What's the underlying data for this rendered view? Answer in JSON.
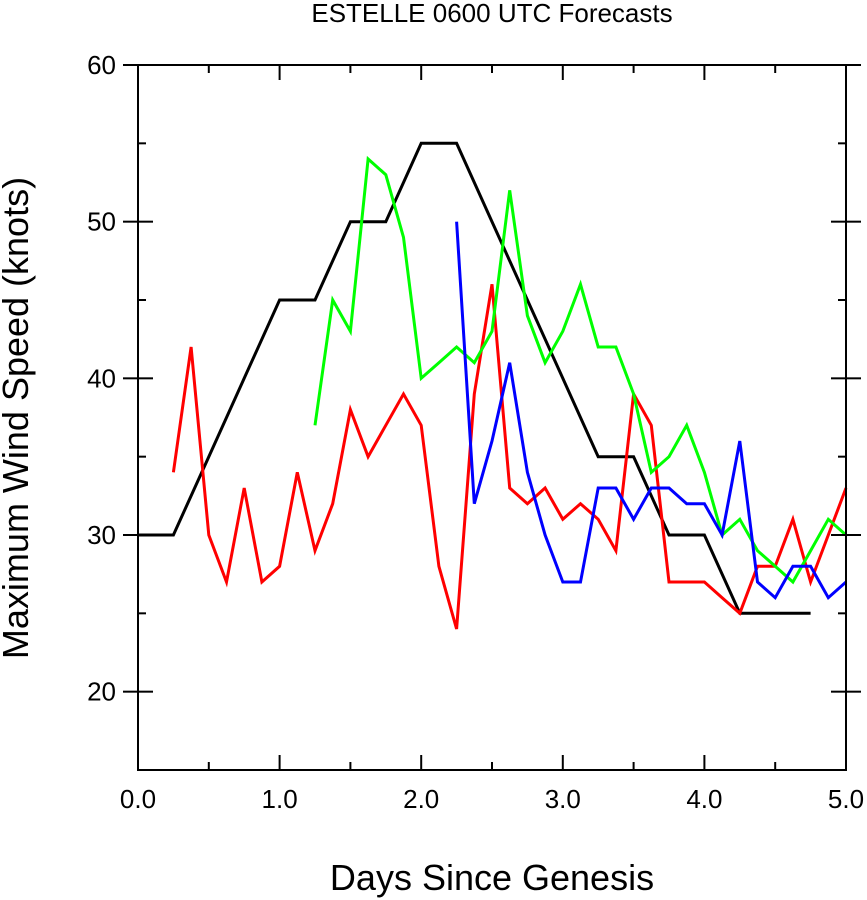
{
  "chart_data": {
    "type": "line",
    "title": "ESTELLE 0600 UTC Forecasts",
    "xlabel": "Days Since Genesis",
    "ylabel": "Maximum Wind Speed (knots)",
    "xlim": [
      0,
      5
    ],
    "ylim": [
      15,
      60
    ],
    "x_ticks": [
      0,
      1,
      2,
      3,
      4,
      5
    ],
    "x_tick_labels": [
      "0.0",
      "1.0",
      "2.0",
      "3.0",
      "4.0",
      "5.0"
    ],
    "y_ticks": [
      20,
      30,
      40,
      50,
      60
    ],
    "y_tick_labels": [
      "20",
      "30",
      "40",
      "50",
      "60"
    ],
    "grid": false,
    "legend": "none",
    "series": [
      {
        "color": "#000000",
        "x": [
          0,
          0.25,
          0.5,
          0.75,
          1.0,
          1.25,
          1.5,
          1.75,
          2.0,
          2.25,
          2.5,
          2.75,
          3.0,
          3.25,
          3.5,
          3.75,
          4.0,
          4.25,
          4.5,
          4.75
        ],
        "y": [
          30,
          30,
          35,
          40,
          45,
          45,
          50,
          50,
          55,
          55,
          50,
          45,
          40,
          35,
          35,
          30,
          30,
          25,
          25,
          25
        ]
      },
      {
        "color": "#ff0000",
        "x": [
          0.25,
          0.375,
          0.5,
          0.625,
          0.75,
          0.875,
          1.0,
          1.125,
          1.25,
          1.375,
          1.5,
          1.625,
          1.75,
          1.875,
          2.0,
          2.125,
          2.25,
          2.375,
          2.5,
          2.625,
          2.75,
          2.875,
          3.0,
          3.125,
          3.25,
          3.375,
          3.5,
          3.625,
          3.75,
          3.875,
          4.0,
          4.125,
          4.25,
          4.375,
          4.5,
          4.625,
          4.75,
          4.875,
          5.0
        ],
        "y": [
          34,
          42,
          30,
          27,
          33,
          27,
          28,
          34,
          29,
          32,
          38,
          35,
          37,
          39,
          37,
          28,
          24,
          39,
          46,
          33,
          32,
          33,
          31,
          32,
          31,
          29,
          39,
          37,
          27,
          27,
          27,
          26,
          25,
          28,
          28,
          31,
          27,
          30,
          33
        ]
      },
      {
        "color": "#00ff00",
        "x": [
          1.25,
          1.375,
          1.5,
          1.625,
          1.75,
          1.875,
          2.0,
          2.125,
          2.25,
          2.375,
          2.5,
          2.625,
          2.75,
          2.875,
          3.0,
          3.125,
          3.25,
          3.375,
          3.5,
          3.625,
          3.75,
          3.875,
          4.0,
          4.125,
          4.25,
          4.375,
          4.5,
          4.625,
          4.75,
          4.875,
          5.0
        ],
        "y": [
          37,
          45,
          43,
          54,
          53,
          49,
          40,
          41,
          42,
          41,
          43,
          52,
          44,
          41,
          43,
          46,
          42,
          42,
          39,
          34,
          35,
          37,
          34,
          30,
          31,
          29,
          28,
          27,
          29,
          31,
          30
        ]
      },
      {
        "color": "#0000ff",
        "x": [
          2.25,
          2.375,
          2.5,
          2.625,
          2.75,
          2.875,
          3.0,
          3.125,
          3.25,
          3.375,
          3.5,
          3.625,
          3.75,
          3.875,
          4.0,
          4.125,
          4.25,
          4.375,
          4.5,
          4.625,
          4.75,
          4.875,
          5.0
        ],
        "y": [
          50,
          32,
          36,
          41,
          34,
          30,
          27,
          27,
          33,
          33,
          31,
          33,
          33,
          32,
          32,
          30,
          36,
          27,
          26,
          28,
          28,
          26,
          27
        ]
      }
    ]
  }
}
